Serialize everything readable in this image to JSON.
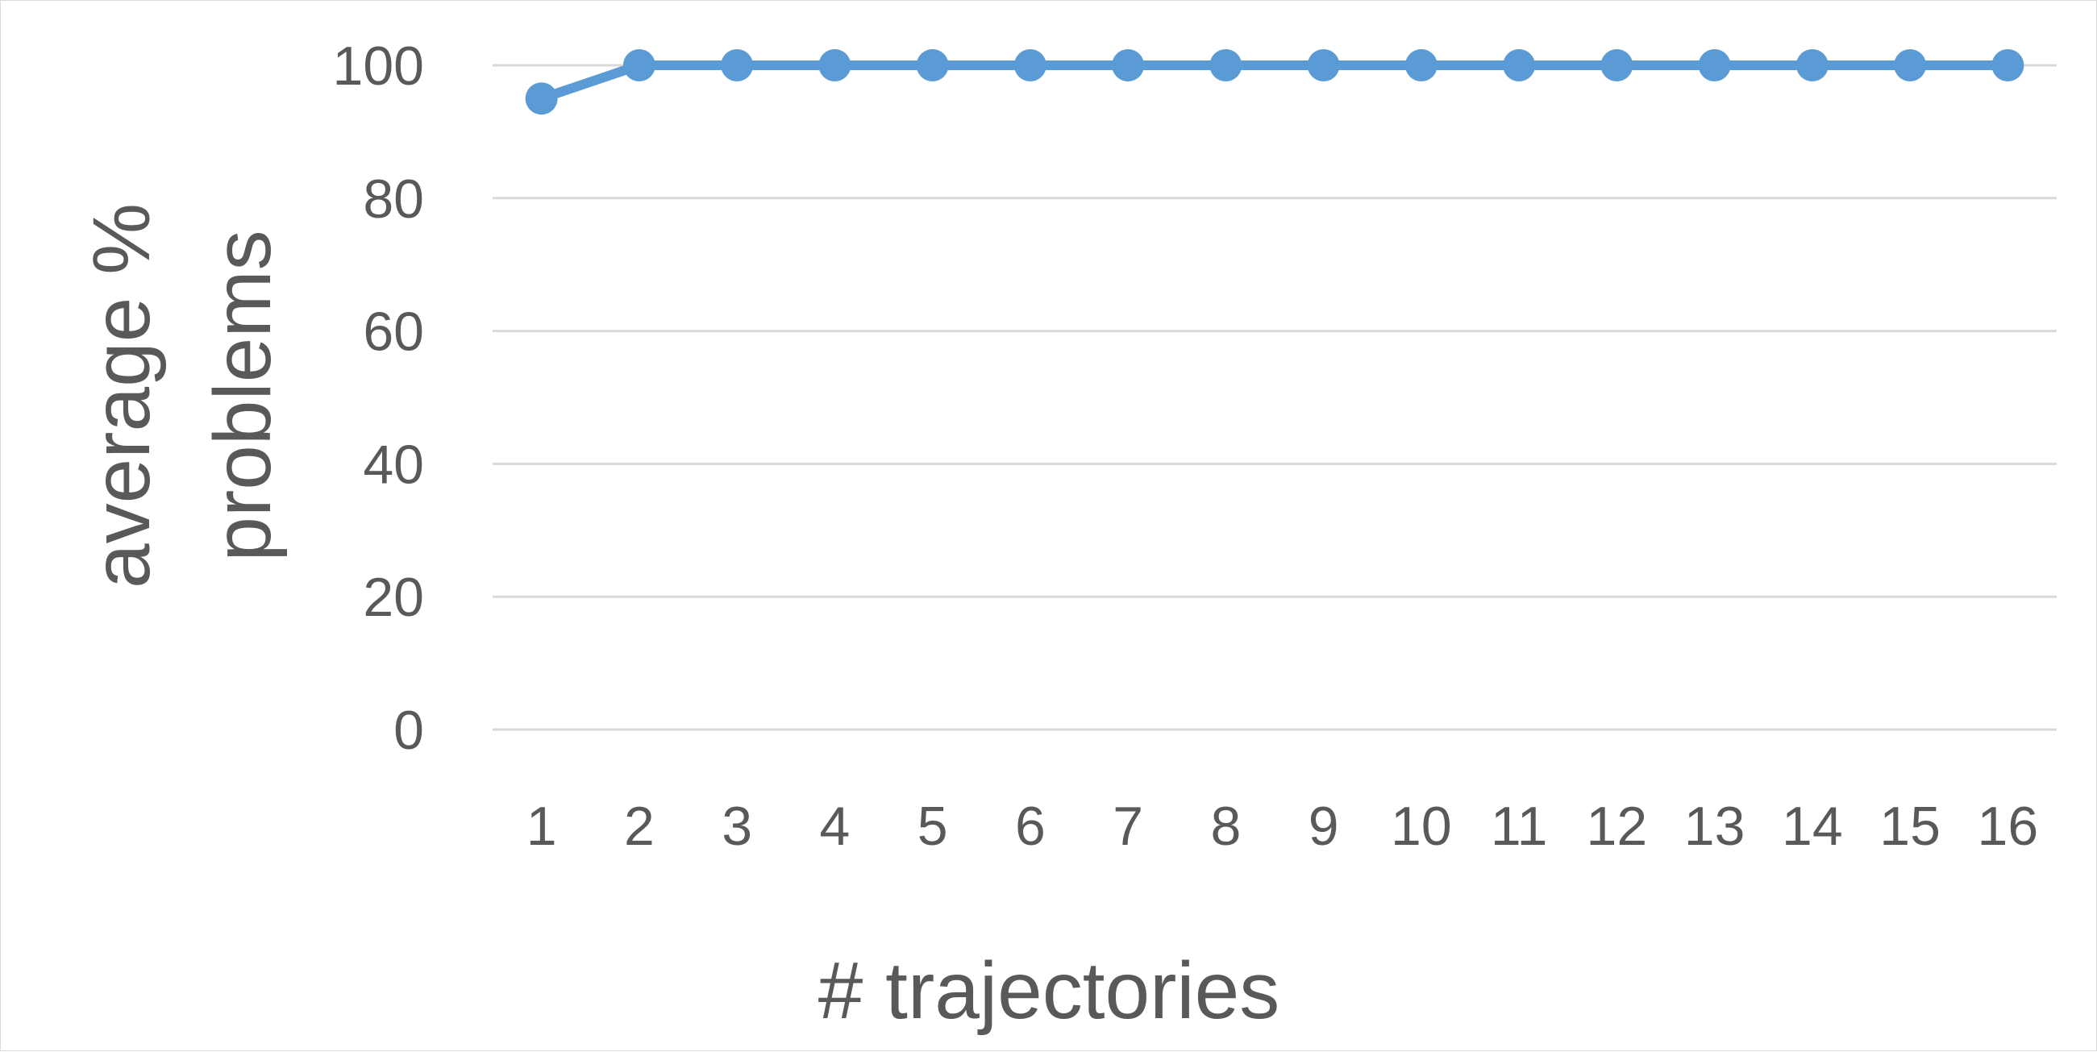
{
  "chart_data": {
    "type": "line",
    "title": "",
    "xlabel": "# trajectories",
    "ylabel_lines": [
      "average %",
      "problems"
    ],
    "categories": [
      "1",
      "2",
      "3",
      "4",
      "5",
      "6",
      "7",
      "8",
      "9",
      "10",
      "11",
      "12",
      "13",
      "14",
      "15",
      "16"
    ],
    "series": [
      {
        "values": [
          95,
          100,
          100,
          100,
          100,
          100,
          100,
          100,
          100,
          100,
          100,
          100,
          100,
          100,
          100,
          100
        ]
      }
    ],
    "ylim": [
      0,
      100
    ],
    "yticks": [
      0,
      20,
      40,
      60,
      80,
      100
    ],
    "grid": true,
    "legend": "none",
    "colors": {
      "line": "#5b9bd5",
      "grid": "#d9d9d9",
      "text": "#595959"
    }
  }
}
